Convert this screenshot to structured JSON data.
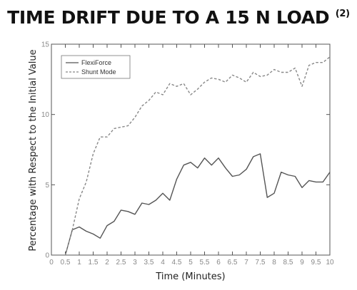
{
  "chart_data": {
    "type": "line",
    "title": "TIME DRIFT DUE TO A 15 N LOAD",
    "title_ref": "(2)",
    "xlabel": "Time (Minutes)",
    "ylabel": "Percentage with Respect to the Initial Value",
    "xlim": [
      0,
      10
    ],
    "ylim": [
      0,
      15
    ],
    "xticks": [
      "0",
      "0.5",
      "1",
      "1.5",
      "2",
      "2.5",
      "3",
      "3.5",
      "4",
      "4.5",
      "5",
      "5.5",
      "6",
      "6.5",
      "7",
      "7.5",
      "8",
      "8.5",
      "9",
      "9.5",
      "10"
    ],
    "yticks": [
      "0",
      "5",
      "10",
      "15"
    ],
    "grid": false,
    "legend_position": "top-left",
    "series": [
      {
        "name": "FlexiForce",
        "style": "solid",
        "color": "#555555",
        "x": [
          0.5,
          0.75,
          1,
          1.25,
          1.5,
          1.75,
          2,
          2.25,
          2.5,
          2.75,
          3,
          3.25,
          3.5,
          3.75,
          4,
          4.25,
          4.5,
          4.75,
          5,
          5.25,
          5.5,
          5.75,
          6,
          6.25,
          6.5,
          6.75,
          7,
          7.25,
          7.5,
          7.75,
          8,
          8.25,
          8.5,
          8.75,
          9,
          9.25,
          9.5,
          9.75,
          10
        ],
        "y": [
          0,
          1.8,
          2.0,
          1.7,
          1.5,
          1.2,
          2.1,
          2.4,
          3.2,
          3.1,
          2.9,
          3.7,
          3.6,
          3.9,
          4.4,
          3.9,
          5.4,
          6.4,
          6.6,
          6.2,
          6.9,
          6.4,
          6.9,
          6.2,
          5.6,
          5.7,
          6.1,
          7.0,
          7.2,
          4.1,
          4.4,
          5.9,
          5.7,
          5.6,
          4.8,
          5.3,
          5.2,
          5.2,
          5.9
        ]
      },
      {
        "name": "Shunt Mode",
        "style": "dashed",
        "color": "#888888",
        "x": [
          0.5,
          0.75,
          1,
          1.25,
          1.5,
          1.75,
          2,
          2.25,
          2.5,
          2.75,
          3,
          3.25,
          3.5,
          3.75,
          4,
          4.25,
          4.5,
          4.75,
          5,
          5.25,
          5.5,
          5.75,
          6,
          6.25,
          6.5,
          6.75,
          7,
          7.25,
          7.5,
          7.75,
          8,
          8.25,
          8.5,
          8.75,
          9,
          9.25,
          9.5,
          9.75,
          10
        ],
        "y": [
          0,
          1.8,
          4.0,
          5.2,
          7.2,
          8.4,
          8.4,
          9.0,
          9.1,
          9.2,
          9.8,
          10.6,
          11.0,
          11.6,
          11.4,
          12.2,
          12.0,
          12.2,
          11.4,
          11.8,
          12.3,
          12.6,
          12.5,
          12.3,
          12.8,
          12.6,
          12.3,
          13.0,
          12.7,
          12.8,
          13.2,
          13.0,
          13.0,
          13.3,
          12.0,
          13.5,
          13.7,
          13.7,
          14.1
        ]
      }
    ]
  }
}
